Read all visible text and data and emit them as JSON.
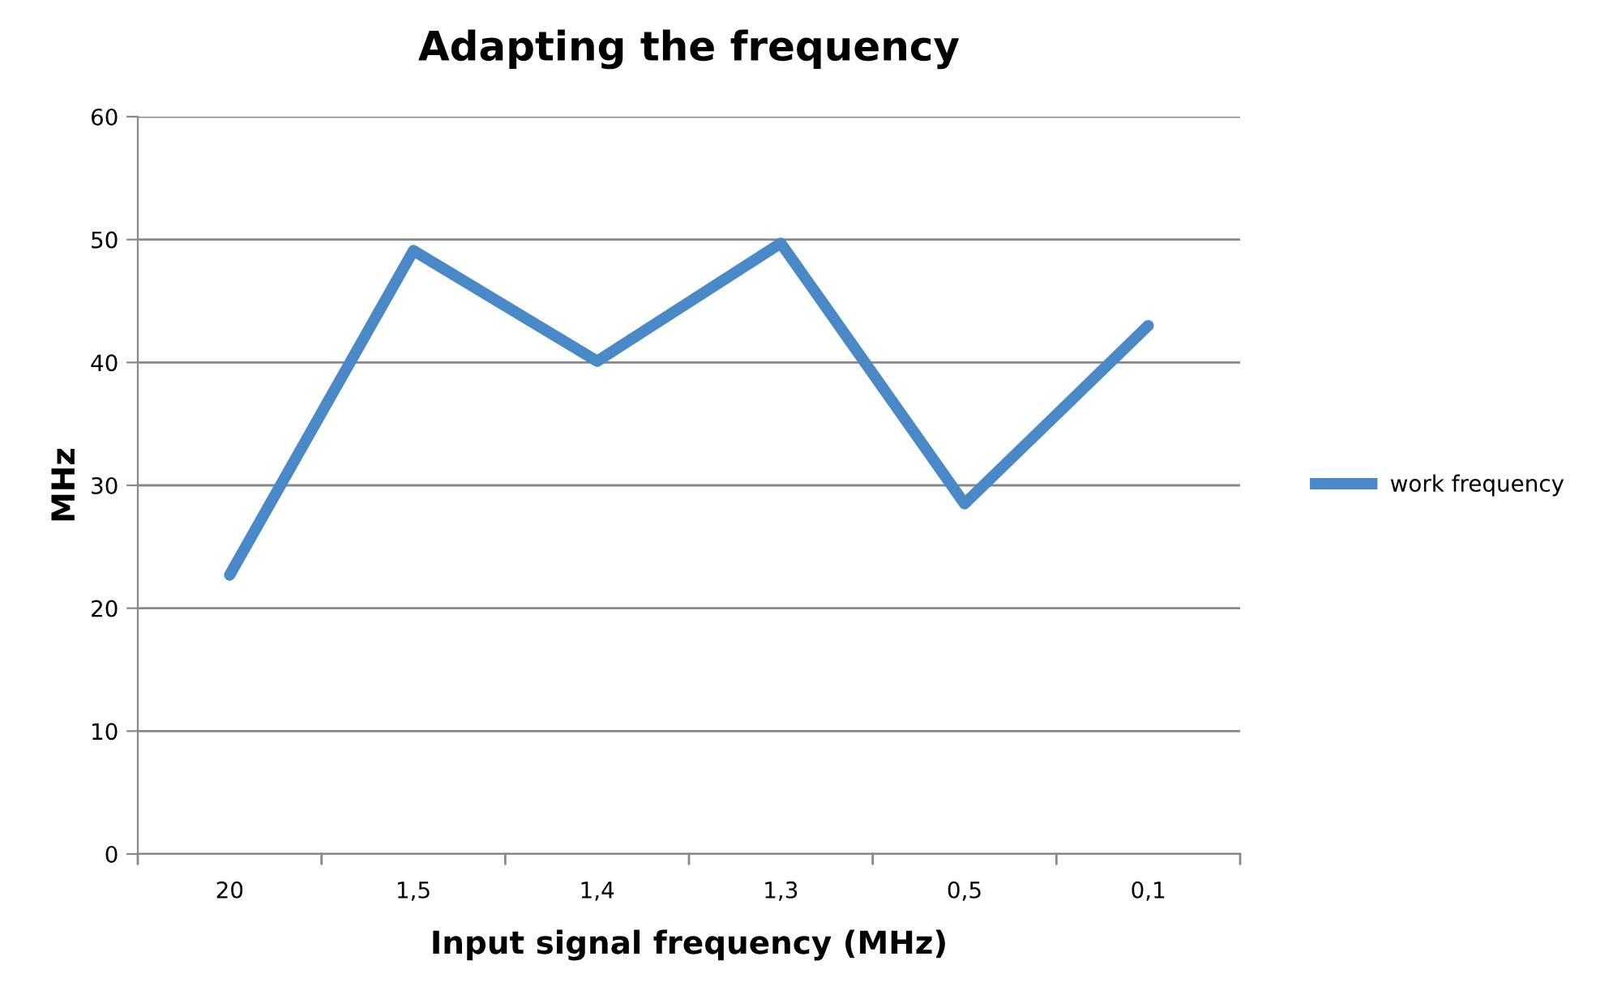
{
  "chart_data": {
    "type": "line",
    "title": "Adapting the frequency",
    "xlabel": "Input signal frequency (MHz)",
    "ylabel": "MHz",
    "categories": [
      "20",
      "1,5",
      "1,4",
      "1,3",
      "0,5",
      "0,1"
    ],
    "series": [
      {
        "name": "work frequency",
        "color": "#4a89c8",
        "values": [
          22.7,
          49.1,
          40.1,
          49.7,
          28.5,
          43.0
        ]
      }
    ],
    "ylim": [
      0,
      60
    ],
    "yticks": [
      0,
      10,
      20,
      30,
      40,
      50,
      60
    ],
    "grid": "y",
    "legend": "right",
    "marker": "none",
    "line_style": "solid"
  }
}
